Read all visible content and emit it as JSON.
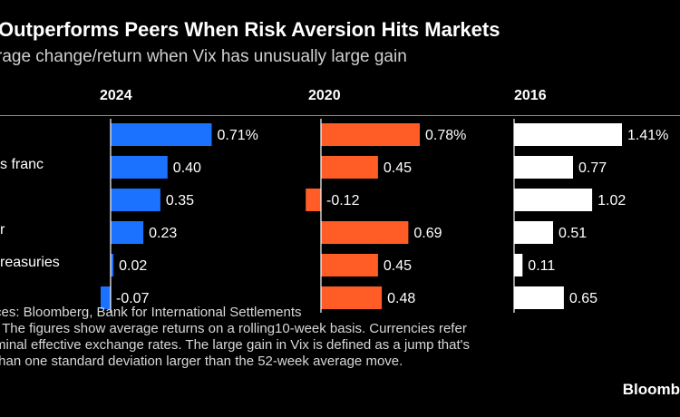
{
  "title": "Outperforms Peers When Risk Aversion Hits Markets",
  "subtitle": "rage change/return when Vix has unusually large gain",
  "notes": {
    "source": "ces: Bloomberg, Bank for International Settlements",
    "note_lines": [
      ": The figures show average returns on a rolling10-week basis. Currencies refer",
      "minal effective exchange rates. The large gain in Vix is defined as a jump that's",
      "than one standard deviation larger than the 52-week average move."
    ]
  },
  "logo": "Bloomb",
  "colors": {
    "background": "#000000",
    "2024": "#1a72ff",
    "2020": "#ff5c26",
    "2016": "#ffffff",
    "axis": "#ffffff",
    "rule": "#8a8a8a"
  },
  "chart_data": {
    "type": "bar",
    "orientation": "horizontal",
    "categories": [
      "",
      "s franc",
      "",
      "r",
      "reasuries",
      ""
    ],
    "series": [
      {
        "name": "2024",
        "values": [
          0.71,
          0.4,
          0.35,
          0.23,
          0.02,
          -0.07
        ],
        "labels": [
          "0.71%",
          "0.40",
          "0.35",
          "0.23",
          "0.02",
          "-0.07"
        ]
      },
      {
        "name": "2020",
        "values": [
          0.78,
          0.45,
          -0.12,
          0.69,
          0.45,
          0.48
        ],
        "labels": [
          "0.78%",
          "0.45",
          "-0.12",
          "0.69",
          "0.45",
          "0.48"
        ]
      },
      {
        "name": "2016",
        "values": [
          1.41,
          0.77,
          1.02,
          0.51,
          0.11,
          0.65
        ],
        "labels": [
          "1.41%",
          "0.77",
          "1.02",
          "0.51",
          "0.11",
          "0.65"
        ]
      }
    ]
  }
}
